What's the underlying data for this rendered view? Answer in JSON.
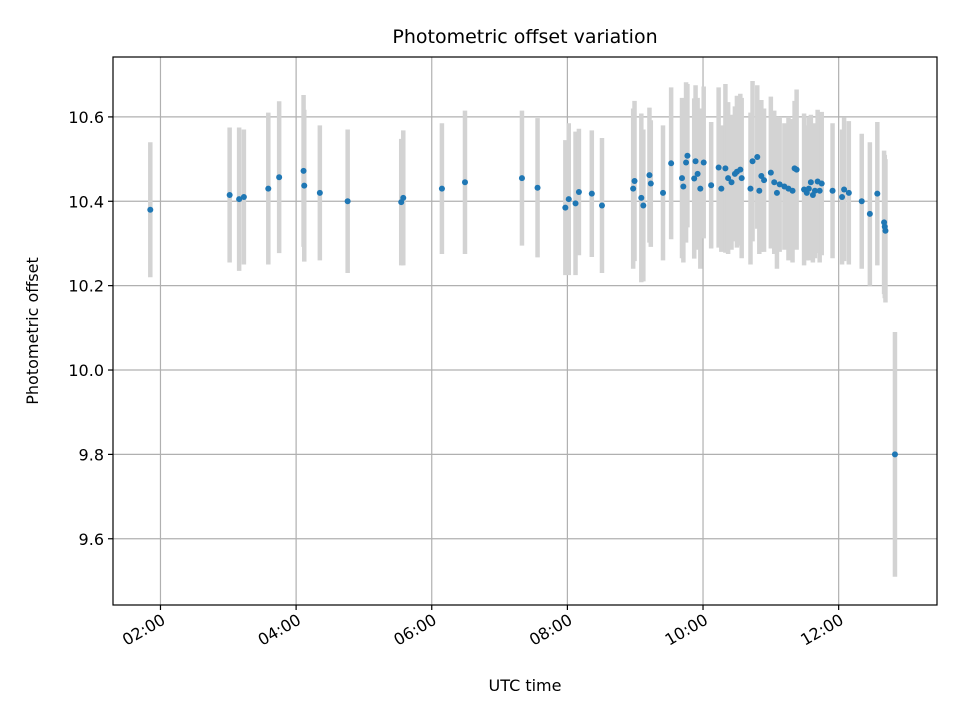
{
  "chart_data": {
    "type": "scatter",
    "title": "Photometric offset variation",
    "xlabel": "UTC time",
    "ylabel": "Photometric offset",
    "grid": true,
    "x_unit": "hours UTC",
    "xlim": [
      1.3,
      13.45
    ],
    "ylim": [
      9.443,
      10.742
    ],
    "x_ticks": [
      {
        "value": 2,
        "label": "02:00"
      },
      {
        "value": 4,
        "label": "04:00"
      },
      {
        "value": 6,
        "label": "06:00"
      },
      {
        "value": 8,
        "label": "08:00"
      },
      {
        "value": 10,
        "label": "10:00"
      },
      {
        "value": 12,
        "label": "12:00"
      }
    ],
    "y_ticks": [
      {
        "value": 9.6,
        "label": "9.6"
      },
      {
        "value": 9.8,
        "label": "9.8"
      },
      {
        "value": 10.0,
        "label": "10.0"
      },
      {
        "value": 10.2,
        "label": "10.2"
      },
      {
        "value": 10.4,
        "label": "10.4"
      },
      {
        "value": 10.6,
        "label": "10.6"
      }
    ],
    "colors": {
      "point": "#1f77b4",
      "errorbar": "#d3d3d3",
      "grid": "#b0b0b0"
    },
    "series": [
      {
        "x": [
          1.85,
          3.02,
          3.16,
          3.23,
          3.59,
          3.75,
          4.11,
          4.12,
          4.35,
          4.76,
          5.55,
          5.58,
          6.15,
          6.49,
          7.33,
          7.56,
          7.97,
          8.02,
          8.12,
          8.17,
          8.36,
          8.51,
          8.97,
          8.99,
          9.09,
          9.12,
          9.21,
          9.23,
          9.41,
          9.53,
          9.69,
          9.71,
          9.75,
          9.77,
          9.87,
          9.89,
          9.92,
          9.96,
          10.01,
          10.12,
          10.23,
          10.27,
          10.33,
          10.37,
          10.42,
          10.47,
          10.5,
          10.55,
          10.57,
          10.7,
          10.73,
          10.8,
          10.83,
          10.86,
          10.9,
          11.0,
          11.05,
          11.09,
          11.13,
          11.2,
          11.26,
          11.32,
          11.35,
          11.38,
          11.49,
          11.53,
          11.56,
          11.59,
          11.62,
          11.65,
          11.69,
          11.72,
          11.75,
          11.91,
          12.05,
          12.08,
          12.15,
          12.34,
          12.46,
          12.57,
          12.67,
          12.68,
          12.69,
          12.83
        ],
        "y": [
          10.38,
          10.415,
          10.405,
          10.41,
          10.43,
          10.457,
          10.472,
          10.437,
          10.42,
          10.4,
          10.398,
          10.408,
          10.43,
          10.445,
          10.455,
          10.432,
          10.385,
          10.405,
          10.395,
          10.422,
          10.418,
          10.39,
          10.43,
          10.448,
          10.408,
          10.39,
          10.462,
          10.442,
          10.42,
          10.49,
          10.455,
          10.435,
          10.492,
          10.508,
          10.454,
          10.495,
          10.465,
          10.43,
          10.492,
          10.438,
          10.48,
          10.43,
          10.478,
          10.455,
          10.445,
          10.465,
          10.47,
          10.475,
          10.455,
          10.43,
          10.495,
          10.505,
          10.425,
          10.46,
          10.45,
          10.468,
          10.445,
          10.42,
          10.44,
          10.435,
          10.43,
          10.425,
          10.478,
          10.475,
          10.428,
          10.42,
          10.43,
          10.445,
          10.415,
          10.425,
          10.447,
          10.425,
          10.442,
          10.425,
          10.41,
          10.428,
          10.42,
          10.4,
          10.37,
          10.418,
          10.35,
          10.34,
          10.33,
          9.8
        ],
        "err": [
          0.16,
          0.16,
          0.17,
          0.16,
          0.18,
          0.18,
          0.18,
          0.18,
          0.16,
          0.17,
          0.15,
          0.16,
          0.155,
          0.17,
          0.16,
          0.165,
          0.16,
          0.18,
          0.17,
          0.15,
          0.15,
          0.16,
          0.19,
          0.19,
          0.2,
          0.18,
          0.16,
          0.15,
          0.16,
          0.18,
          0.19,
          0.18,
          0.19,
          0.17,
          0.19,
          0.18,
          0.18,
          0.19,
          0.18,
          0.15,
          0.19,
          0.15,
          0.2,
          0.18,
          0.16,
          0.16,
          0.18,
          0.18,
          0.19,
          0.18,
          0.19,
          0.17,
          0.15,
          0.18,
          0.17,
          0.18,
          0.17,
          0.18,
          0.16,
          0.15,
          0.17,
          0.17,
          0.16,
          0.19,
          0.18,
          0.16,
          0.17,
          0.16,
          0.16,
          0.16,
          0.17,
          0.17,
          0.17,
          0.16,
          0.16,
          0.17,
          0.17,
          0.16,
          0.17,
          0.17,
          0.17,
          0.17,
          0.17,
          0.29
        ]
      }
    ]
  }
}
